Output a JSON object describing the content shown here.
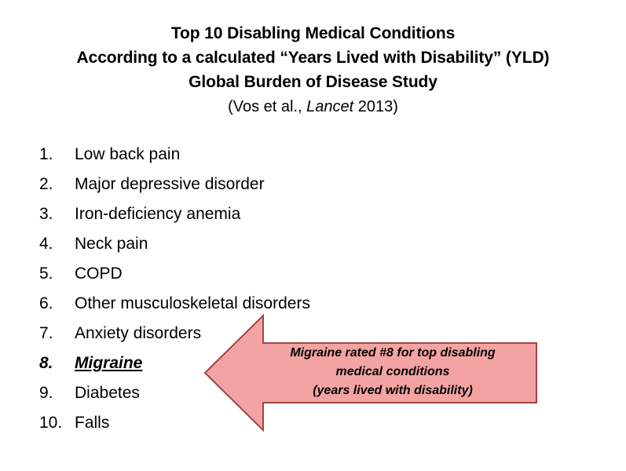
{
  "header": {
    "title_line1": "Top 10 Disabling Medical Conditions",
    "title_line2": "According to a calculated “Years Lived with Disability” (YLD)",
    "title_line3": "Global Burden of Disease Study",
    "citation_open": "(Vos et al., ",
    "citation_journal": "Lancet",
    "citation_close": " 2013)"
  },
  "list": [
    {
      "num": "1.",
      "label": "Low back pain"
    },
    {
      "num": "2.",
      "label": "Major depressive disorder"
    },
    {
      "num": "3.",
      "label": "Iron-deficiency anemia"
    },
    {
      "num": "4.",
      "label": "Neck pain"
    },
    {
      "num": "5.",
      "label": "COPD"
    },
    {
      "num": "6.",
      "label": "Other musculoskeletal disorders"
    },
    {
      "num": "7.",
      "label": "Anxiety disorders"
    },
    {
      "num": "8.",
      "label": "Migraine"
    },
    {
      "num": "9.",
      "label": "Diabetes"
    },
    {
      "num": "10.",
      "label": "Falls"
    }
  ],
  "callout": {
    "line1": "Migraine rated #8 for top disabling",
    "line2": "medical conditions",
    "line3": "(years lived with disability)"
  },
  "colors": {
    "arrow_fill": "#f4a3a3",
    "arrow_stroke": "#a04545"
  }
}
